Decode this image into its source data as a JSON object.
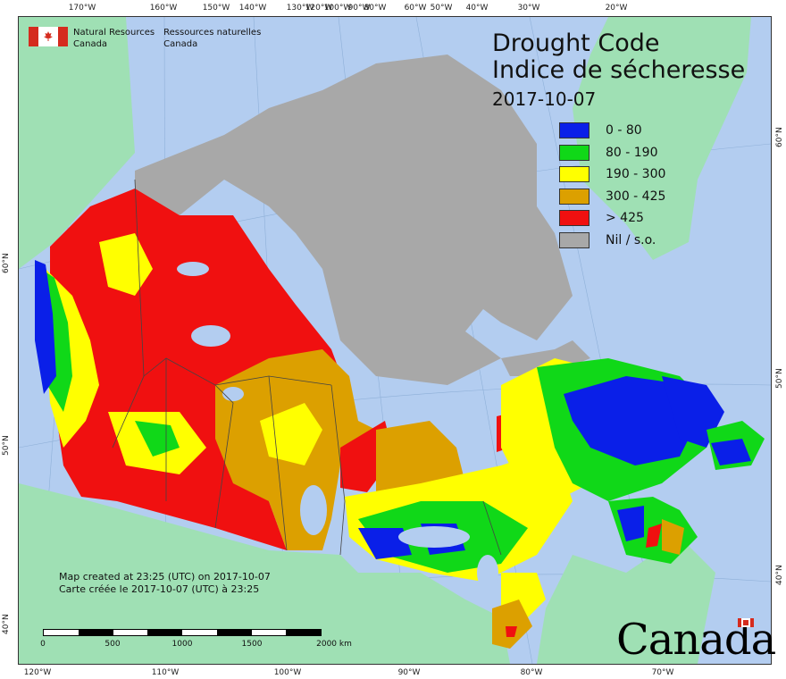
{
  "header": {
    "org_en_1": "Natural Resources",
    "org_en_2": "Canada",
    "org_fr_1": "Ressources naturelles",
    "org_fr_2": "Canada"
  },
  "title": {
    "line1": "Drought Code",
    "line2": "Indice de sécheresse",
    "date": "2017-10-07"
  },
  "legend": [
    {
      "label": "0 - 80",
      "color": "#0a1fe8"
    },
    {
      "label": "80 - 190",
      "color": "#10d818"
    },
    {
      "label": "190 - 300",
      "color": "#ffff00"
    },
    {
      "label": "300 - 425",
      "color": "#dca000"
    },
    {
      "label": "> 425",
      "color": "#f01010"
    },
    {
      "label": "Nil / s.o.",
      "color": "#a8a8a8"
    }
  ],
  "credits": {
    "line_en": "Map created at 23:25 (UTC) on 2017-10-07",
    "line_fr": "Carte créée le 2017-10-07 (UTC) à 23:25"
  },
  "scalebar": {
    "labels": [
      "0",
      "500",
      "1000",
      "1500",
      "2000  km"
    ]
  },
  "wordmark": "Canada",
  "graticule": {
    "top": [
      "170°W",
      "160°W",
      "150°W",
      "140°W",
      "130°W",
      "120°W",
      "100°W",
      "90°W",
      "80°W",
      "60°W",
      "50°W",
      "40°W",
      "30°W",
      "20°W"
    ],
    "bottom": [
      "120°W",
      "110°W",
      "100°W",
      "90°W",
      "80°W",
      "70°W"
    ],
    "left": [
      "60°N",
      "50°N",
      "40°N"
    ],
    "right": [
      "60°N",
      "50°N",
      "40°N"
    ]
  },
  "colors": {
    "water": "#b3cdf0",
    "land_other": "#9fe0b4",
    "nil": "#a8a8a8"
  }
}
